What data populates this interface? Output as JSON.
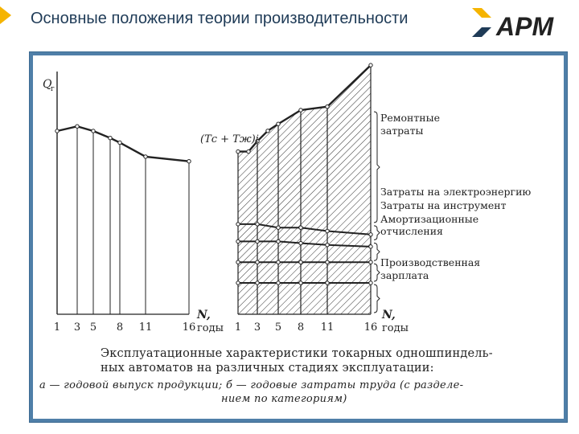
{
  "header": {
    "title": "Основные положения теории производительности",
    "logo_text": "APM",
    "accent_color": "#f5b400",
    "title_color": "#1f3b57"
  },
  "frame_color": "#4f7fa8",
  "chart_data": [
    {
      "type": "line",
      "ylabel": "Q",
      "ylabel_sub": "г",
      "xlabel": "N, годы",
      "x_ticks": [
        "1",
        "3",
        "5",
        "8",
        "11",
        "16"
      ],
      "series": [
        {
          "x": [
            1,
            3,
            5,
            7,
            8,
            11,
            16
          ],
          "y": [
            90,
            92,
            90,
            87,
            85,
            79,
            77
          ]
        }
      ]
    },
    {
      "type": "area",
      "annotation": "(Tс + Tж)i",
      "xlabel": "N, годы",
      "x_ticks": [
        "1",
        "3",
        "5",
        "8",
        "11",
        "16"
      ],
      "categories": [
        "Ремонтные затраты",
        "Затраты на электроэнергию",
        "Затраты на инструмент",
        "Амортизационные отчисления",
        "Производственная зарплата"
      ],
      "boundaries": [
        {
          "x": [
            1,
            3,
            5,
            8,
            11,
            16
          ],
          "y": [
            30,
            30,
            30,
            30,
            30,
            30
          ]
        },
        {
          "x": [
            1,
            3,
            5,
            8,
            11,
            16
          ],
          "y": [
            36,
            36,
            36,
            36,
            36,
            36
          ]
        },
        {
          "x": [
            1,
            3,
            5,
            8,
            11,
            16
          ],
          "y": [
            42,
            42,
            42,
            41.5,
            41,
            40.5
          ]
        },
        {
          "x": [
            1,
            3,
            5,
            8,
            11,
            16
          ],
          "y": [
            47,
            47,
            46,
            46,
            45,
            44
          ]
        },
        {
          "x": [
            1,
            2,
            3,
            4,
            5,
            8,
            11,
            16
          ],
          "y": [
            68,
            68,
            71,
            74,
            76,
            80,
            81,
            93
          ]
        }
      ]
    }
  ],
  "caption": {
    "main_line1": "Эксплуатационные характеристики токарных одношпиндель-",
    "main_line2": "ных автоматов на различных стадиях эксплуатации:",
    "sub_line1": "а — годовой выпуск продукции; б — годовые затраты труда (с разделе-",
    "sub_line2": "нием по категориям)"
  }
}
